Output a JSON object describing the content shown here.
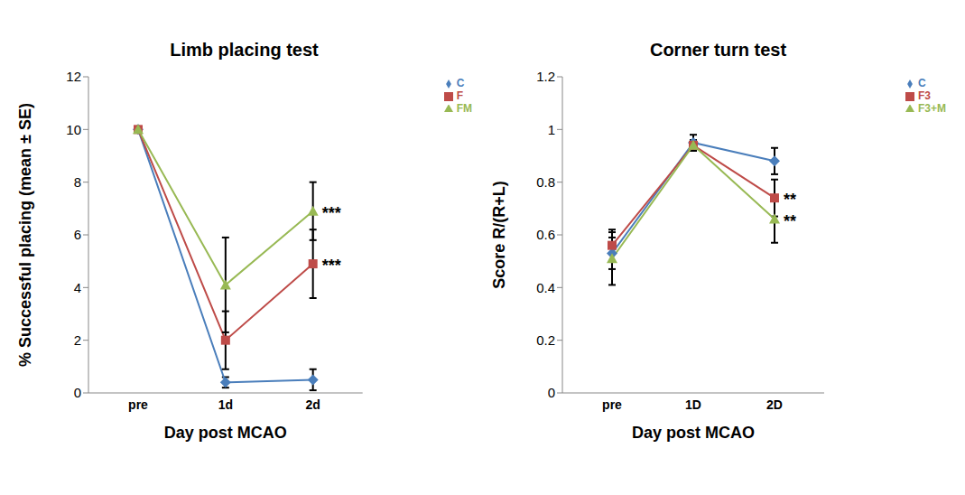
{
  "chart_data": [
    {
      "type": "line",
      "title": "Limb placing test",
      "x_label": "Day post MCAO",
      "y_label": "% Successful placing (mean ± SE)",
      "categories": [
        "pre",
        "1d",
        "2d"
      ],
      "ylim": [
        0,
        12
      ],
      "yticks": [
        0,
        2,
        4,
        6,
        8,
        10,
        12
      ],
      "grid": false,
      "legend": "top right",
      "series": [
        {
          "name": "C",
          "color": "#4a7ebb",
          "marker": "diamond",
          "values": [
            10,
            0.4,
            0.5
          ],
          "errors": [
            0,
            0.2,
            0.4
          ]
        },
        {
          "name": "F",
          "color": "#be4b48",
          "marker": "square",
          "values": [
            10,
            2,
            4.9
          ],
          "errors": [
            0,
            1.1,
            1.3
          ]
        },
        {
          "name": "FM",
          "color": "#98b954",
          "marker": "triangle",
          "values": [
            10,
            4.1,
            6.9
          ],
          "errors": [
            0,
            1.8,
            1.1
          ]
        }
      ],
      "annotations": [
        {
          "text": "***",
          "series": "FM",
          "category": "2d"
        },
        {
          "text": "***",
          "series": "F",
          "category": "2d"
        }
      ]
    },
    {
      "type": "line",
      "title": "Corner turn test",
      "x_label": "Day post MCAO",
      "y_label": "Score R/(R+L)",
      "categories": [
        "pre",
        "1D",
        "2D"
      ],
      "ylim": [
        0,
        1.2
      ],
      "yticks": [
        0,
        0.2,
        0.4,
        0.6,
        0.8,
        1,
        1.2
      ],
      "grid": false,
      "legend": "top right",
      "series": [
        {
          "name": "C",
          "color": "#4a7ebb",
          "marker": "diamond",
          "values": [
            0.53,
            0.95,
            0.88
          ],
          "errors": [
            0.06,
            0.03,
            0.05
          ]
        },
        {
          "name": "F3",
          "color": "#be4b48",
          "marker": "square",
          "values": [
            0.56,
            0.94,
            0.74
          ],
          "errors": [
            0.06,
            0.02,
            0.07
          ]
        },
        {
          "name": "F3+M",
          "color": "#98b954",
          "marker": "triangle",
          "values": [
            0.51,
            0.94,
            0.66
          ],
          "errors": [
            0.1,
            0.02,
            0.09
          ]
        }
      ],
      "annotations": [
        {
          "text": "**",
          "series": "F3",
          "category": "2D"
        },
        {
          "text": "**",
          "series": "F3+M",
          "category": "2D"
        }
      ]
    }
  ]
}
